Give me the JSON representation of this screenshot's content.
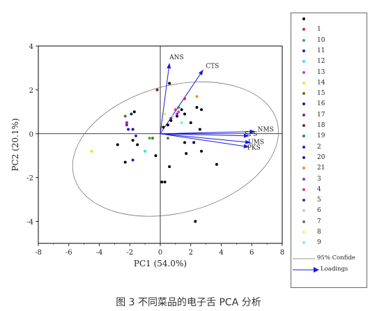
{
  "chart_data": {
    "type": "scatter",
    "xlabel": "PC1 (54.0%)",
    "ylabel": "PC2 (20.1%)",
    "xlim": [
      -8,
      8
    ],
    "ylim": [
      -5,
      4
    ],
    "xticks": [
      "-8",
      "-6",
      "-4",
      "-2",
      "0",
      "2",
      "4",
      "6",
      "8"
    ],
    "yticks": [
      "-4",
      "-2",
      "0",
      "2",
      "4"
    ],
    "series": [
      {
        "name": "",
        "color": "#000000",
        "points": [
          [
            0.2,
            0.3
          ],
          [
            0.5,
            0.4
          ],
          [
            0.7,
            0.6
          ],
          [
            1.1,
            0.8
          ],
          [
            1.4,
            1.1
          ],
          [
            2.4,
            1.2
          ],
          [
            2.7,
            1.1
          ],
          [
            1.6,
            0.9
          ],
          [
            2.6,
            0.2
          ],
          [
            2.0,
            0.5
          ],
          [
            2.2,
            -0.4
          ],
          [
            1.7,
            -0.9
          ],
          [
            2.7,
            -0.8
          ],
          [
            1.6,
            -0.4
          ],
          [
            3.7,
            -1.4
          ],
          [
            -1.7,
            1.0
          ],
          [
            -2.2,
            0.5
          ],
          [
            -1.8,
            -0.3
          ],
          [
            -2.8,
            -0.5
          ],
          [
            -0.3,
            -1.0
          ],
          [
            0.1,
            -2.2
          ],
          [
            0.3,
            -2.2
          ],
          [
            0.6,
            -1.5
          ],
          [
            2.3,
            -4.0
          ],
          [
            -2.3,
            -1.3
          ],
          [
            -1.5,
            -0.5
          ],
          [
            0.6,
            2.3
          ]
        ]
      },
      {
        "name": "1",
        "color": "#e0202a",
        "points": [
          [
            1.6,
            1.6
          ]
        ]
      },
      {
        "name": "10",
        "color": "#2eb82e",
        "points": [
          [
            -0.7,
            -0.2
          ]
        ]
      },
      {
        "name": "11",
        "color": "#1a1ae6",
        "points": [
          [
            -2.1,
            0.2
          ]
        ]
      },
      {
        "name": "12",
        "color": "#2ee6e6",
        "points": [
          [
            -1.0,
            -0.8
          ]
        ]
      },
      {
        "name": "13",
        "color": "#e62ed1",
        "points": [
          [
            1.2,
            1.0
          ]
        ]
      },
      {
        "name": "14",
        "color": "#e6e62e",
        "points": [
          [
            -4.5,
            -0.8
          ]
        ]
      },
      {
        "name": "15",
        "color": "#6b6b1a",
        "points": [
          [
            -2.3,
            0.8
          ],
          [
            -0.5,
            -0.2
          ]
        ]
      },
      {
        "name": "16",
        "color": "#1a1a8a",
        "points": [
          [
            -1.9,
            0.9
          ]
        ]
      },
      {
        "name": "17",
        "color": "#8a1a8a",
        "points": [
          [
            -2.2,
            0.4
          ],
          [
            0.7,
            0.7
          ]
        ]
      },
      {
        "name": "18",
        "color": "#8a1a1a",
        "points": [
          [
            -0.2,
            2.0
          ]
        ]
      },
      {
        "name": "19",
        "color": "#1a8a6b",
        "points": [
          [
            1.2,
            1.2
          ]
        ]
      },
      {
        "name": "2",
        "color": "#1a1ae6",
        "points": [
          [
            -1.8,
            -1.2
          ]
        ]
      },
      {
        "name": "20",
        "color": "#1a1a8a",
        "points": [
          [
            -1.8,
            0.2
          ]
        ]
      },
      {
        "name": "21",
        "color": "#f08c1a",
        "points": [
          [
            2.4,
            1.7
          ]
        ]
      },
      {
        "name": "3",
        "color": "#8a2ee6",
        "points": [
          [
            1.1,
            0.9
          ],
          [
            -2.2,
            0.5
          ]
        ]
      },
      {
        "name": "4",
        "color": "#e62e8a",
        "points": [
          [
            1.0,
            1.1
          ]
        ]
      },
      {
        "name": "5",
        "color": "#2e2eb8",
        "points": [
          [
            -1.6,
            -0.1
          ]
        ]
      },
      {
        "name": "6",
        "color": "#c8c8c8",
        "points": [
          [
            0.8,
            0.8
          ]
        ]
      },
      {
        "name": "7",
        "color": "#6e6e6e",
        "points": [
          [
            0.5,
            -0.2
          ]
        ]
      },
      {
        "name": "8",
        "color": "#f0f05a",
        "points": [
          [
            0.3,
            0.9
          ]
        ]
      },
      {
        "name": "9",
        "color": "#6ef0f0",
        "points": [
          [
            1.4,
            0.5
          ]
        ]
      }
    ],
    "loadings": [
      {
        "label": "ANS",
        "x": 0.6,
        "y": 3.2
      },
      {
        "label": "CTS",
        "x": 2.8,
        "y": 2.9
      },
      {
        "label": "NMS",
        "x": 6.2,
        "y": 0.1
      },
      {
        "label": "SPS",
        "x": 5.8,
        "y": -0.1
      },
      {
        "label": "UMS",
        "x": 5.9,
        "y": -0.4
      },
      {
        "label": "PKS",
        "x": 5.8,
        "y": -0.6
      }
    ],
    "ellipse": {
      "cx": 1.0,
      "cy": -0.7,
      "rx": 6.9,
      "ry": 2.9,
      "angle_deg": 15
    },
    "legend": [
      {
        "label": "",
        "color": "#000000"
      },
      {
        "label": "1",
        "color": "#e0202a"
      },
      {
        "label": "10",
        "color": "#2eb82e"
      },
      {
        "label": "11",
        "color": "#1a1ae6"
      },
      {
        "label": "12",
        "color": "#2ee6e6"
      },
      {
        "label": "13",
        "color": "#e62ed1"
      },
      {
        "label": "14",
        "color": "#e6e62e"
      },
      {
        "label": "15",
        "color": "#6b6b1a"
      },
      {
        "label": "16",
        "color": "#1a1a8a"
      },
      {
        "label": "17",
        "color": "#8a1a8a"
      },
      {
        "label": "18",
        "color": "#8a1a1a"
      },
      {
        "label": "19",
        "color": "#1a8a6b"
      },
      {
        "label": "2",
        "color": "#1a1ae6"
      },
      {
        "label": "20",
        "color": "#1a1a8a"
      },
      {
        "label": "21",
        "color": "#f08c1a"
      },
      {
        "label": "3",
        "color": "#8a2ee6"
      },
      {
        "label": "4",
        "color": "#e62e8a"
      },
      {
        "label": "5",
        "color": "#2e2eb8"
      },
      {
        "label": "6",
        "color": "#c8c8c8"
      },
      {
        "label": "7",
        "color": "#6e6e6e"
      },
      {
        "label": "8",
        "color": "#f0f05a"
      },
      {
        "label": "9",
        "color": "#6ef0f0"
      }
    ],
    "legend_ellipse_label": "95% Confide",
    "legend_loadings_label": "Loadings",
    "loadings_color": "#1a1ae6"
  },
  "caption": "图 3  不同菜品的电子舌 PCA 分析"
}
